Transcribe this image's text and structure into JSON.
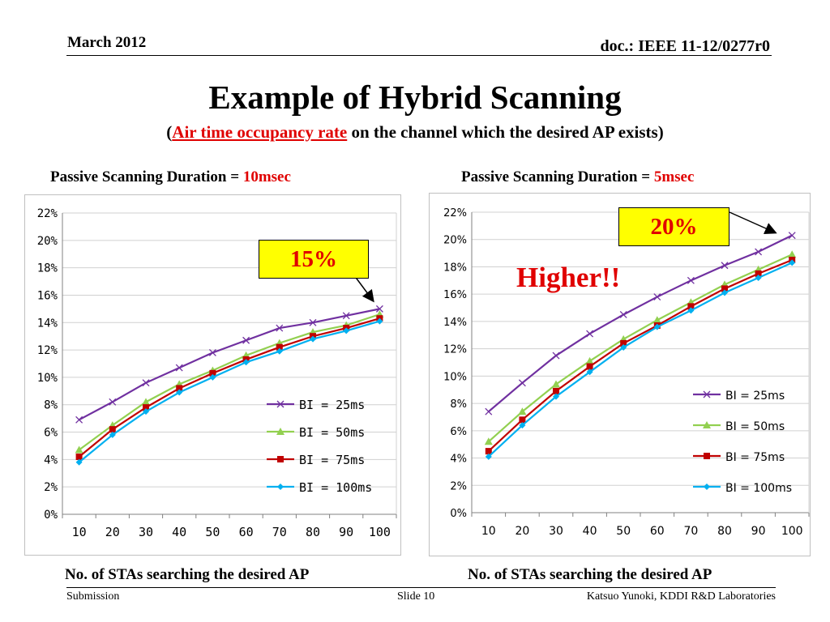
{
  "header": {
    "date": "March 2012",
    "doc_id": "doc.: IEEE 11-12/0277r0"
  },
  "title": "Example of Hybrid Scanning",
  "subtitle": {
    "open": "(",
    "highlight": "Air time occupancy rate",
    "rest": " on the channel which the desired AP exists)"
  },
  "left_panel": {
    "label": "Passive Scanning Duration = ",
    "value": "10msec",
    "callout": "15%",
    "x_caption": "No. of STAs searching the desired AP"
  },
  "right_panel": {
    "label": "Passive Scanning Duration = ",
    "value": "5msec",
    "callout": "20%",
    "emphasis": "Higher!!",
    "x_caption": "No. of STAs searching the desired AP"
  },
  "footer": {
    "left": "Submission",
    "center": "Slide 10",
    "right": "Katsuo Yunoki, KDDI R&D Laboratories"
  },
  "colors": {
    "accent_red": "#e00000",
    "callout_bg": "#ffff00",
    "bi25": "#7030a0",
    "bi50": "#92d050",
    "bi75": "#c00000",
    "bi100": "#00b0f0"
  },
  "chart_data": [
    {
      "type": "line",
      "x": [
        10,
        20,
        30,
        40,
        50,
        60,
        70,
        80,
        90,
        100
      ],
      "x_tick_labels": [
        "10",
        "20",
        "30",
        "40",
        "50",
        "60",
        "70",
        "80",
        "90",
        "100"
      ],
      "ylim": [
        0,
        22
      ],
      "y_tick_labels": [
        "0%",
        "2%",
        "4%",
        "6%",
        "8%",
        "10%",
        "12%",
        "14%",
        "16%",
        "18%",
        "20%",
        "22%"
      ],
      "grid": true,
      "legend_position": "bottom-right",
      "series": [
        {
          "name": "BI = 25ms",
          "color": "#7030a0",
          "marker": "x",
          "values": [
            6.9,
            8.2,
            9.6,
            10.7,
            11.8,
            12.7,
            13.6,
            14.0,
            14.5,
            15.0
          ]
        },
        {
          "name": "BI = 50ms",
          "color": "#92d050",
          "marker": "triangle",
          "values": [
            4.7,
            6.5,
            8.2,
            9.5,
            10.5,
            11.6,
            12.5,
            13.3,
            13.8,
            14.6
          ]
        },
        {
          "name": "BI = 75ms",
          "color": "#c00000",
          "marker": "square",
          "values": [
            4.2,
            6.2,
            7.8,
            9.2,
            10.3,
            11.3,
            12.2,
            13.0,
            13.6,
            14.3
          ]
        },
        {
          "name": "BI = 100ms",
          "color": "#00b0f0",
          "marker": "diamond",
          "values": [
            3.8,
            5.8,
            7.5,
            8.9,
            10.0,
            11.1,
            11.9,
            12.8,
            13.4,
            14.1
          ]
        }
      ]
    },
    {
      "type": "line",
      "x": [
        10,
        20,
        30,
        40,
        50,
        60,
        70,
        80,
        90,
        100
      ],
      "x_tick_labels": [
        "10",
        "20",
        "30",
        "40",
        "50",
        "60",
        "70",
        "80",
        "90",
        "100"
      ],
      "ylim": [
        0,
        22
      ],
      "y_tick_labels": [
        "0%",
        "2%",
        "4%",
        "6%",
        "8%",
        "10%",
        "12%",
        "14%",
        "16%",
        "18%",
        "20%",
        "22%"
      ],
      "grid": true,
      "legend_position": "bottom-right",
      "series": [
        {
          "name": "BI = 25ms",
          "color": "#7030a0",
          "marker": "x",
          "values": [
            7.4,
            9.5,
            11.5,
            13.1,
            14.5,
            15.8,
            17.0,
            18.1,
            19.1,
            20.3
          ]
        },
        {
          "name": "BI = 50ms",
          "color": "#92d050",
          "marker": "triangle",
          "values": [
            5.2,
            7.4,
            9.4,
            11.1,
            12.7,
            14.1,
            15.4,
            16.7,
            17.8,
            18.9
          ]
        },
        {
          "name": "BI = 75ms",
          "color": "#c00000",
          "marker": "square",
          "values": [
            4.5,
            6.8,
            8.9,
            10.7,
            12.4,
            13.7,
            15.1,
            16.4,
            17.5,
            18.5
          ]
        },
        {
          "name": "BI = 100ms",
          "color": "#00b0f0",
          "marker": "diamond",
          "values": [
            4.1,
            6.4,
            8.5,
            10.3,
            12.1,
            13.6,
            14.8,
            16.1,
            17.2,
            18.3
          ]
        }
      ]
    }
  ]
}
